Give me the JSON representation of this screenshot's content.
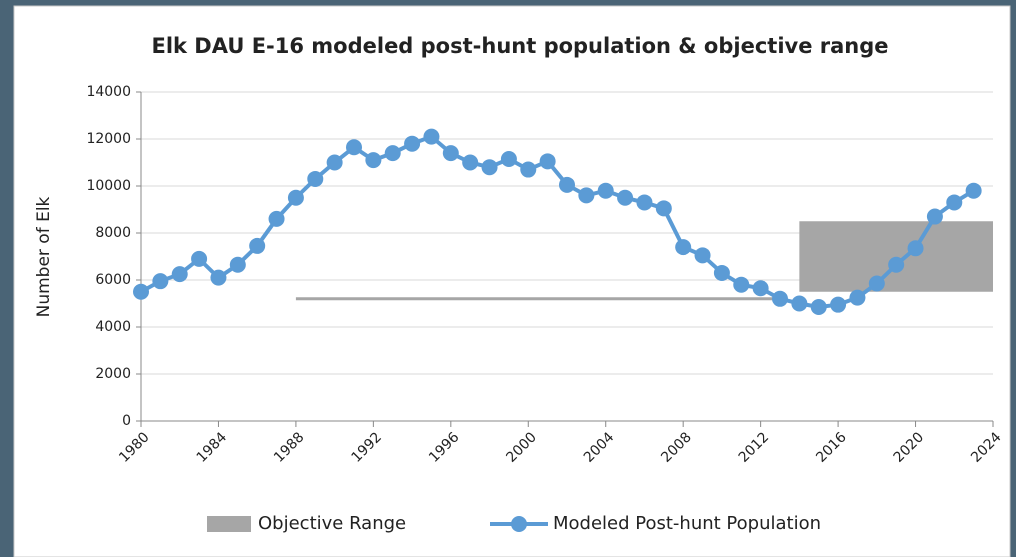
{
  "chart_data": {
    "type": "line",
    "title": "Elk DAU E-16 modeled post-hunt population & objective range",
    "y_label": "Number of Elk",
    "x": [
      1980,
      1981,
      1982,
      1983,
      1984,
      1985,
      1986,
      1987,
      1988,
      1989,
      1990,
      1991,
      1992,
      1993,
      1994,
      1995,
      1996,
      1997,
      1998,
      1999,
      2000,
      2001,
      2002,
      2003,
      2004,
      2005,
      2006,
      2007,
      2008,
      2009,
      2010,
      2011,
      2012,
      2013,
      2014,
      2015,
      2016,
      2017,
      2018,
      2019,
      2020,
      2021,
      2022,
      2023
    ],
    "series": [
      {
        "name": "Modeled Post-hunt Population",
        "color": "#5b9bd5",
        "values": [
          5500,
          5950,
          6250,
          6900,
          6100,
          6650,
          7450,
          8600,
          9500,
          10300,
          11000,
          11650,
          11100,
          11400,
          11800,
          12100,
          11400,
          11000,
          10800,
          11150,
          10700,
          11050,
          10050,
          9600,
          9800,
          9500,
          9300,
          9050,
          7400,
          7050,
          6300,
          5800,
          5650,
          5200,
          5000,
          4850,
          4950,
          5250,
          5850,
          6650,
          7350,
          8700,
          9300,
          9800
        ]
      }
    ],
    "objective_range": {
      "name": "Objective Range",
      "color": "#a6a6a6",
      "segments": [
        {
          "x0": 1988,
          "x1": 2013,
          "low": 5200,
          "high": 5200
        },
        {
          "x0": 2014,
          "x1": 2024,
          "low": 5500,
          "high": 8500
        }
      ]
    },
    "xlim": [
      1980,
      2024
    ],
    "xticks": [
      1980,
      1984,
      1988,
      1992,
      1996,
      2000,
      2004,
      2008,
      2012,
      2016,
      2020,
      2024
    ],
    "ylim": [
      0,
      14000
    ],
    "yticks": [
      0,
      2000,
      4000,
      6000,
      8000,
      10000,
      12000,
      14000
    ],
    "grid": true
  }
}
